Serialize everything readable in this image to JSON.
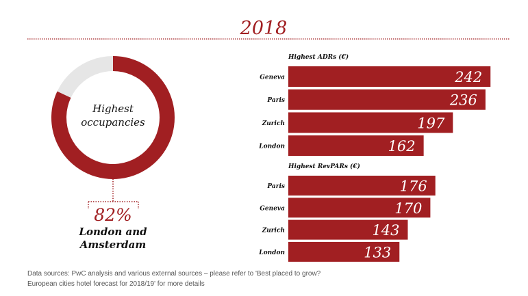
{
  "title": "2018",
  "colors": {
    "accent": "#a11f22",
    "track": "#e6e6e6"
  },
  "chart_data": [
    {
      "type": "pie",
      "subtype": "donut",
      "center_label_line1": "Highest",
      "center_label_line2": "occupancies",
      "value_percent": 82,
      "value_label": "82%",
      "caption_line1": "London and",
      "caption_line2": "Amsterdam"
    },
    {
      "type": "bar",
      "orientation": "horizontal",
      "title": "Highest ADRs (€)",
      "categories": [
        "Geneva",
        "Paris",
        "Zurich",
        "London"
      ],
      "values": [
        242,
        236,
        197,
        162
      ]
    },
    {
      "type": "bar",
      "orientation": "horizontal",
      "title": "Highest RevPARs (€)",
      "categories": [
        "Paris",
        "Geneva",
        "Zurich",
        "London"
      ],
      "values": [
        176,
        170,
        143,
        133
      ]
    }
  ],
  "footnote_line1": "Data sources: PwC analysis and various external sources – please refer to 'Best placed to grow?",
  "footnote_line2": "European cities hotel forecast for 2018/19' for more details"
}
